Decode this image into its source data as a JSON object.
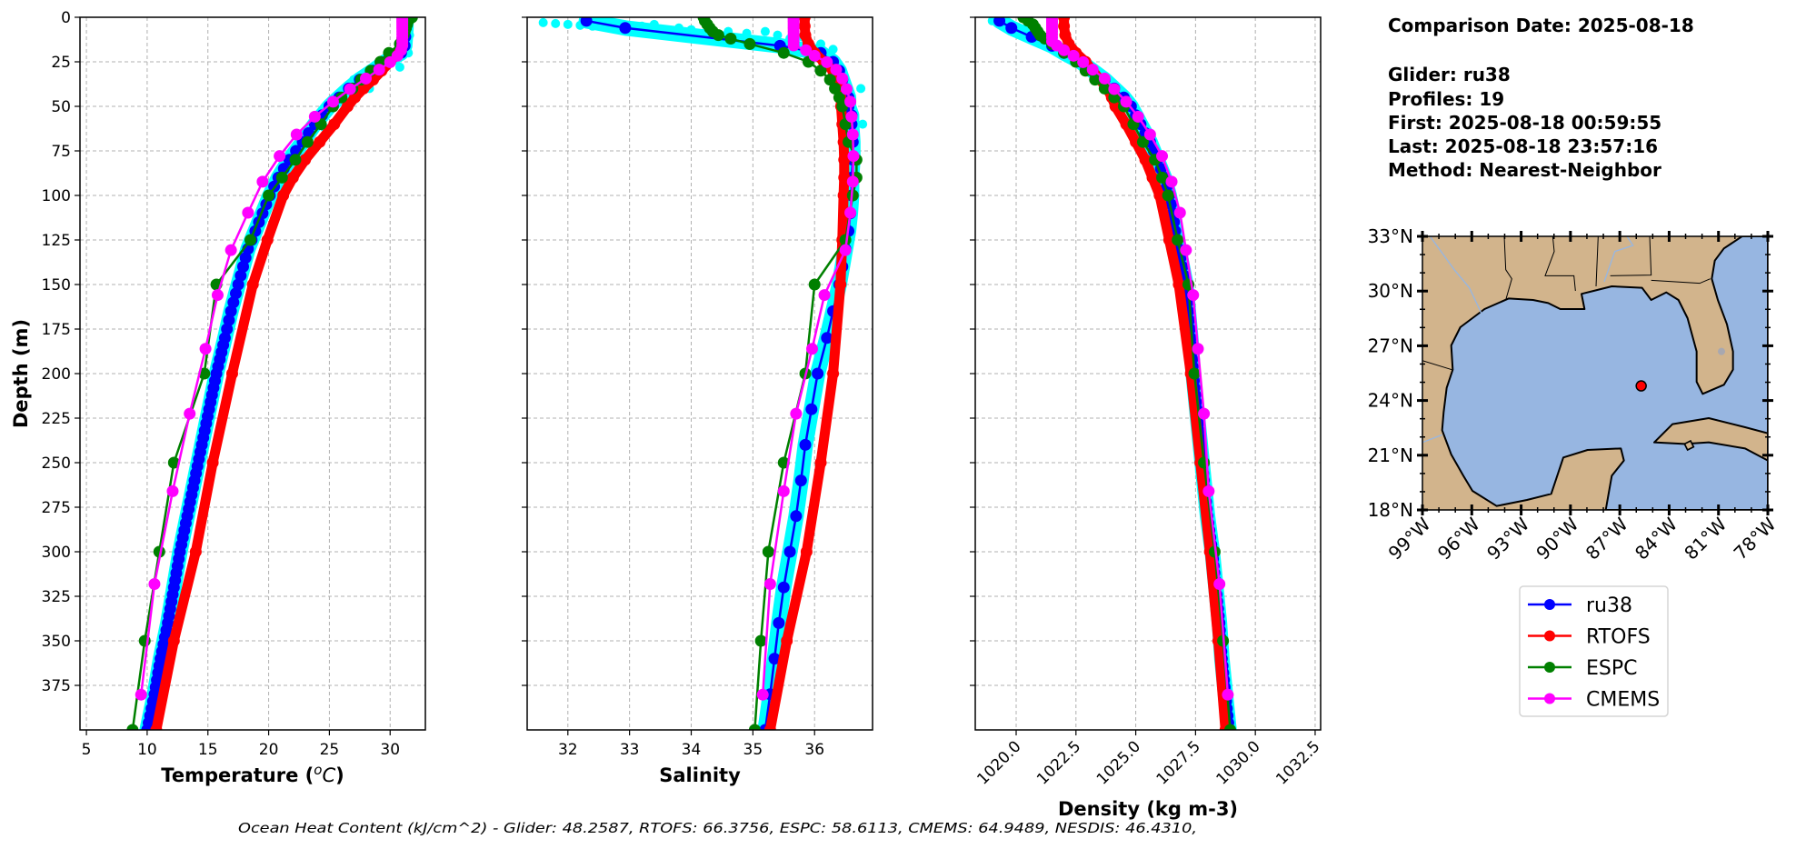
{
  "info": {
    "comparison_date": "Comparison Date: 2025-08-18",
    "glider": "Glider: ru38",
    "profiles": "Profiles: 19",
    "first": "First: 2025-08-18 00:59:55",
    "last": "Last: 2025-08-18 23:57:16",
    "method": "Method: Nearest-Neighbor"
  },
  "footer": "Ocean Heat Content (kJ/cm^2) - Glider: 48.2587,  RTOFS: 66.3756,  ESPC: 58.6113,  CMEMS: 64.9489,  NESDIS: 46.4310,",
  "legend": [
    {
      "label": "ru38",
      "color": "#0000ff"
    },
    {
      "label": "RTOFS",
      "color": "#ff0000"
    },
    {
      "label": "ESPC",
      "color": "#008000"
    },
    {
      "label": "CMEMS",
      "color": "#ff00ff"
    }
  ],
  "colors": {
    "ru38": "#0000ff",
    "RTOFS": "#ff0000",
    "ESPC": "#008000",
    "CMEMS": "#ff00ff",
    "glider_raw": "#00ffff",
    "ocean": "#97b6e1",
    "land": "#d2b48c",
    "grid": "#b0b0b0"
  },
  "profile_depths": {
    "ru38": [
      2,
      6,
      16,
      20,
      25,
      30,
      35,
      40,
      45,
      50,
      55,
      60,
      70,
      80,
      90,
      100,
      110,
      120,
      130,
      140,
      150,
      165,
      180,
      200,
      220,
      240,
      260,
      280,
      300,
      320,
      340,
      360,
      380,
      400
    ],
    "RTOFS": [
      0,
      5,
      10,
      15,
      20,
      25,
      30,
      35,
      40,
      45,
      50,
      60,
      70,
      80,
      90,
      100,
      125,
      150,
      200,
      250,
      300,
      350,
      400
    ],
    "ESPC": [
      0,
      2,
      4,
      6,
      8,
      10,
      12,
      15,
      20,
      25,
      30,
      35,
      40,
      45,
      50,
      60,
      70,
      80,
      90,
      100,
      125,
      150,
      200,
      250,
      300,
      350,
      400
    ],
    "CMEMS": [
      0.5,
      1.5,
      2.6,
      3.8,
      5.1,
      6.4,
      7.9,
      9.6,
      11.4,
      13.5,
      15.8,
      18.5,
      21.6,
      25.2,
      29.4,
      34.4,
      40.3,
      47.4,
      55.8,
      65.8,
      77.9,
      92.3,
      109.7,
      130.7,
      155.9,
      186.1,
      222.5,
      266.0,
      318.1,
      380.2
    ]
  },
  "chart_data": [
    {
      "type": "line",
      "ylabel": "Depth (m)",
      "xlabel": {
        "prefix": "Temperature (",
        "sup": "o",
        "unit": "C",
        "suffix": ")"
      },
      "xlim": [
        4.47,
        32.9
      ],
      "ylim": [
        400,
        0
      ],
      "xticks": [
        5,
        10,
        15,
        20,
        25,
        30
      ],
      "xtick_labels": [
        "5",
        "10",
        "15",
        "20",
        "25",
        "30"
      ],
      "yticks": [
        0,
        25,
        50,
        75,
        100,
        125,
        150,
        175,
        200,
        225,
        250,
        275,
        300,
        325,
        350,
        375
      ],
      "ytick_labels": [
        "0",
        "25",
        "50",
        "75",
        "100",
        "125",
        "150",
        "175",
        "200",
        "225",
        "250",
        "275",
        "300",
        "325",
        "350",
        "375"
      ],
      "grid": true,
      "series": [
        {
          "name": "ru38",
          "values": [
            31.3,
            31.3,
            31.2,
            30.9,
            29.6,
            28.6,
            27.5,
            26.6,
            25.8,
            25.0,
            24.4,
            23.8,
            22.8,
            21.7,
            20.8,
            20.1,
            19.5,
            18.9,
            18.3,
            17.9,
            17.5,
            16.9,
            16.4,
            15.7,
            15.1,
            14.5,
            13.9,
            13.3,
            12.7,
            12.2,
            11.7,
            11.1,
            10.6,
            10.0
          ]
        },
        {
          "name": "RTOFS",
          "values": [
            31.2,
            31.2,
            31.1,
            31.0,
            30.6,
            30.0,
            29.3,
            28.6,
            27.8,
            27.1,
            26.5,
            25.4,
            24.2,
            23.0,
            22.0,
            21.2,
            19.9,
            18.7,
            17.0,
            15.4,
            14.0,
            12.2,
            10.75
          ]
        },
        {
          "name": "ESPC",
          "values": [
            31.8,
            31.5,
            31.4,
            31.3,
            31.2,
            31.1,
            31.0,
            30.8,
            29.9,
            29.2,
            28.4,
            27.6,
            26.9,
            26.0,
            25.3,
            24.3,
            23.2,
            22.2,
            21.1,
            20.0,
            18.5,
            15.7,
            14.7,
            12.2,
            11.0,
            9.8,
            8.8
          ]
        },
        {
          "name": "CMEMS",
          "values": [
            31.0,
            31.0,
            31.0,
            31.0,
            31.0,
            31.0,
            31.0,
            31.0,
            31.0,
            31.0,
            31.0,
            30.9,
            30.6,
            30.0,
            29.1,
            28.0,
            26.7,
            25.3,
            23.8,
            22.3,
            20.9,
            19.5,
            18.3,
            16.9,
            15.8,
            14.8,
            13.5,
            12.1,
            10.6,
            9.5
          ]
        }
      ],
      "glider_raw": {
        "depth": [
          10,
          20,
          28,
          35,
          40,
          55,
          62
        ],
        "values": [
          31.6,
          31.5,
          30.8,
          27.0,
          28.3,
          24.0,
          24.6
        ]
      }
    },
    {
      "type": "line",
      "xlabel": "Salinity",
      "xlim": [
        31.34,
        36.94
      ],
      "ylim": [
        400,
        0
      ],
      "xticks": [
        32,
        33,
        34,
        35,
        36
      ],
      "xtick_labels": [
        "32",
        "33",
        "34",
        "35",
        "36"
      ],
      "grid": true,
      "series": [
        {
          "name": "ru38",
          "values": [
            32.3,
            32.93,
            35.44,
            36.1,
            36.3,
            36.4,
            36.45,
            36.5,
            36.55,
            36.55,
            36.6,
            36.6,
            36.62,
            36.62,
            36.6,
            36.6,
            36.58,
            36.55,
            36.5,
            36.45,
            36.4,
            36.3,
            36.2,
            36.05,
            35.95,
            35.85,
            35.78,
            35.7,
            35.6,
            35.5,
            35.42,
            35.35,
            35.28,
            35.2
          ]
        },
        {
          "name": "RTOFS",
          "values": [
            35.84,
            35.84,
            35.85,
            35.9,
            36.0,
            36.15,
            36.3,
            36.35,
            36.4,
            36.42,
            36.43,
            36.45,
            36.47,
            36.48,
            36.48,
            36.47,
            36.45,
            36.42,
            36.3,
            36.1,
            35.87,
            35.55,
            35.28
          ]
        },
        {
          "name": "ESPC",
          "values": [
            34.2,
            34.22,
            34.26,
            34.3,
            34.35,
            34.44,
            34.64,
            34.95,
            35.5,
            35.9,
            36.1,
            36.25,
            36.33,
            36.4,
            36.45,
            36.5,
            36.55,
            36.68,
            36.68,
            36.62,
            36.5,
            36.0,
            35.85,
            35.5,
            35.25,
            35.13,
            35.03
          ]
        },
        {
          "name": "CMEMS",
          "values": [
            35.66,
            35.66,
            35.66,
            35.66,
            35.66,
            35.66,
            35.66,
            35.66,
            35.66,
            35.66,
            35.66,
            35.86,
            36.0,
            36.2,
            36.35,
            36.45,
            36.52,
            36.58,
            36.6,
            36.62,
            36.63,
            36.62,
            36.58,
            36.5,
            36.16,
            35.96,
            35.7,
            35.5,
            35.28,
            35.16
          ]
        }
      ],
      "glider_raw": {
        "depth": [
          3,
          3.5,
          4,
          4.5,
          5,
          3,
          5,
          4,
          6,
          7,
          6,
          8,
          9,
          8,
          10,
          12,
          11,
          14,
          15,
          18,
          40,
          60,
          70
        ],
        "values": [
          31.6,
          31.8,
          32.0,
          32.2,
          32.4,
          32.6,
          33.2,
          33.4,
          33.8,
          34.0,
          34.3,
          34.6,
          34.9,
          35.2,
          35.4,
          35.6,
          35.8,
          35.9,
          36.1,
          36.3,
          36.75,
          36.78,
          36.55
        ]
      }
    },
    {
      "type": "line",
      "xlabel": "Density (kg m-3)",
      "xlim": [
        1018.29,
        1032.73
      ],
      "ylim": [
        400,
        0
      ],
      "xticks": [
        1020.0,
        1022.5,
        1025.0,
        1027.5,
        1030.0,
        1032.5
      ],
      "xtick_labels": [
        "1020.0",
        "1022.5",
        "1025.0",
        "1027.5",
        "1030.0",
        "1032.5"
      ],
      "grid": true,
      "series": [
        {
          "name": "ru38",
          "values": [
            1019.3,
            1019.8,
            1021.5,
            1022.0,
            1022.7,
            1023.2,
            1023.7,
            1024.1,
            1024.5,
            1024.8,
            1025.0,
            1025.2,
            1025.6,
            1025.9,
            1026.2,
            1026.4,
            1026.55,
            1026.65,
            1026.8,
            1026.95,
            1027.1,
            1027.2,
            1027.3,
            1027.4,
            1027.55,
            1027.7,
            1027.85,
            1028.0,
            1028.2,
            1028.35,
            1028.5,
            1028.6,
            1028.75,
            1028.9
          ]
        },
        {
          "name": "RTOFS",
          "values": [
            1022.0,
            1022.0,
            1022.05,
            1022.2,
            1022.5,
            1022.9,
            1023.2,
            1023.5,
            1023.8,
            1024.0,
            1024.15,
            1024.6,
            1025.0,
            1025.4,
            1025.7,
            1026.0,
            1026.4,
            1026.8,
            1027.3,
            1027.7,
            1028.1,
            1028.45,
            1028.75
          ]
        },
        {
          "name": "ESPC",
          "values": [
            1020.3,
            1020.5,
            1020.7,
            1020.8,
            1020.9,
            1021.0,
            1021.2,
            1021.5,
            1022.0,
            1022.5,
            1022.9,
            1023.3,
            1023.7,
            1024.1,
            1024.5,
            1024.9,
            1025.3,
            1025.8,
            1026.1,
            1026.35,
            1026.75,
            1027.2,
            1027.45,
            1027.85,
            1028.3,
            1028.65,
            1028.95
          ]
        },
        {
          "name": "CMEMS",
          "values": [
            1021.5,
            1021.5,
            1021.5,
            1021.5,
            1021.5,
            1021.5,
            1021.5,
            1021.5,
            1021.5,
            1021.5,
            1021.7,
            1022.0,
            1022.4,
            1022.8,
            1023.2,
            1023.7,
            1024.1,
            1024.6,
            1025.1,
            1025.6,
            1026.1,
            1026.5,
            1026.85,
            1027.1,
            1027.4,
            1027.6,
            1027.85,
            1028.05,
            1028.5,
            1028.85
          ]
        }
      ],
      "glider_raw": {
        "depth": [
          2,
          4,
          6,
          8,
          12,
          18,
          24,
          30,
          45,
          70
        ],
        "values": [
          1019.0,
          1019.3,
          1020.1,
          1020.6,
          1021.1,
          1021.8,
          1022.4,
          1023.0,
          1024.2,
          1025.5
        ]
      }
    },
    {
      "type": "map",
      "lon_range": [
        -99,
        -78
      ],
      "lat_range": [
        18,
        33
      ],
      "lon_ticks": [
        -99,
        -96,
        -93,
        -90,
        -87,
        -84,
        -81,
        -78
      ],
      "lon_tick_labels": [
        "99°W",
        "96°W",
        "93°W",
        "90°W",
        "87°W",
        "84°W",
        "81°W",
        "78°W"
      ],
      "lat_ticks": [
        33,
        30,
        27,
        24,
        21,
        18
      ],
      "lat_tick_labels": [
        "33°N",
        "30°N",
        "27°N",
        "24°N",
        "21°N",
        "18°N"
      ],
      "glider_position": {
        "lon": -85.7,
        "lat": 24.8
      }
    }
  ]
}
